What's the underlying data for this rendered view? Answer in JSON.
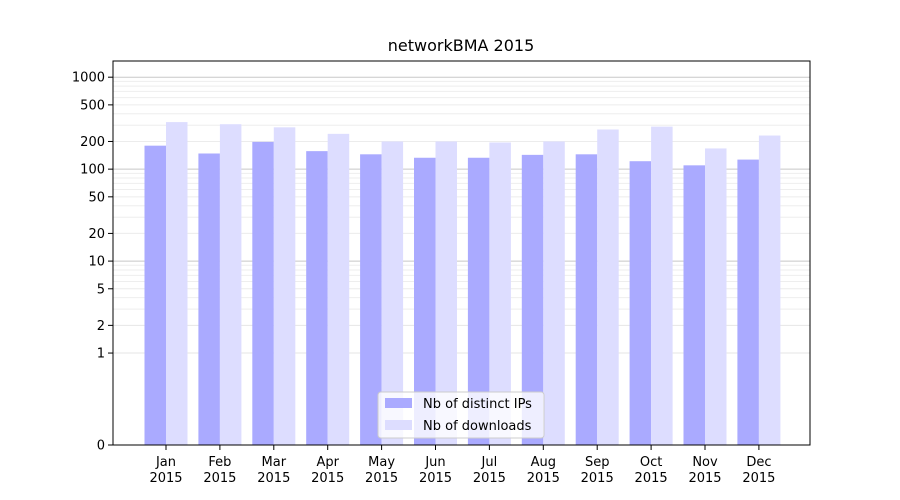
{
  "chart_data": {
    "type": "bar",
    "title": "networkBMA 2015",
    "xlabel": "",
    "ylabel": "",
    "yscale": "symlog",
    "ylim": [
      0,
      1500
    ],
    "grid": true,
    "legend_position": "bottom-center",
    "categories": [
      "Jan\n2015",
      "Feb\n2015",
      "Mar\n2015",
      "Apr\n2015",
      "May\n2015",
      "Jun\n2015",
      "Jul\n2015",
      "Aug\n2015",
      "Sep\n2015",
      "Oct\n2015",
      "Nov\n2015",
      "Dec\n2015"
    ],
    "series": [
      {
        "name": "Nb of distinct IPs",
        "color": "#aaaaff",
        "values": [
          180,
          148,
          198,
          157,
          145,
          133,
          133,
          143,
          145,
          122,
          110,
          127
        ]
      },
      {
        "name": "Nb of downloads",
        "color": "#ddddff",
        "values": [
          325,
          308,
          285,
          242,
          200,
          200,
          195,
          200,
          270,
          290,
          168,
          232
        ]
      }
    ],
    "ytick_labels": [
      "0",
      "1",
      "2",
      "5",
      "10",
      "20",
      "50",
      "100",
      "200",
      "500",
      "1000"
    ],
    "ytick_values": [
      0,
      1,
      2,
      5,
      10,
      20,
      50,
      100,
      200,
      500,
      1000
    ]
  }
}
